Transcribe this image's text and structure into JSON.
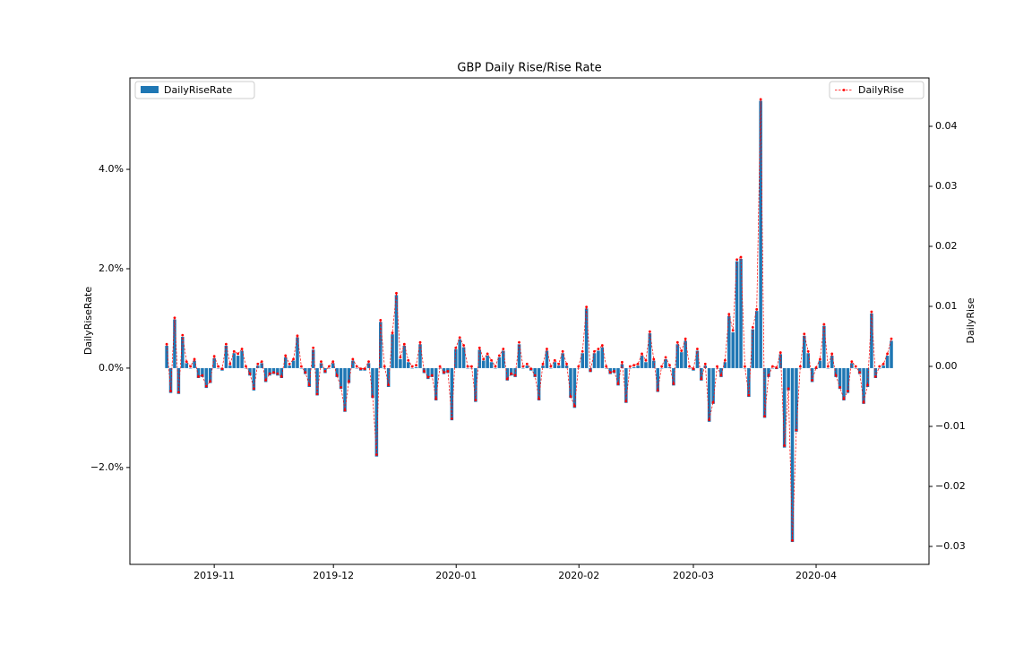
{
  "chart_data": {
    "type": "bar",
    "title": "GBP Daily Rise/Rise Rate",
    "y_label": "DailyRiseRate",
    "y2_label": "DailyRise",
    "xlim": [
      -9.3,
      192.5
    ],
    "xticks": [
      {
        "value": 12.0,
        "label": "2019-11"
      },
      {
        "value": 42.1,
        "label": "2019-12"
      },
      {
        "value": 73.1,
        "label": "2020-01"
      },
      {
        "value": 104.1,
        "label": "2020-02"
      },
      {
        "value": 133.0,
        "label": "2020-03"
      },
      {
        "value": 164.0,
        "label": "2020-04"
      }
    ],
    "ylim": [
      -3.95,
      5.84
    ],
    "yticks": [
      {
        "value": -2,
        "label": "−2.0%"
      },
      {
        "value": 0,
        "label": "0.0%"
      },
      {
        "value": 2,
        "label": "2.0%"
      },
      {
        "value": 4,
        "label": "4.0%"
      }
    ],
    "y2lim": [
      -0.03299,
      0.04806
    ],
    "y2ticks": [
      {
        "value": -0.03,
        "label": "−0.03"
      },
      {
        "value": -0.02,
        "label": "−0.02"
      },
      {
        "value": -0.01,
        "label": "−0.01"
      },
      {
        "value": 0,
        "label": "0.00"
      },
      0.01,
      0.02,
      0.03,
      0.04
    ],
    "series": [
      {
        "name": "DailyRiseRate",
        "type": "bar",
        "color": "#1f77b4",
        "legend": "upper left",
        "values": [
          0.45,
          -0.5,
          0.98,
          -0.52,
          0.63,
          0.1,
          0.0,
          0.15,
          -0.2,
          -0.18,
          -0.4,
          -0.3,
          0.2,
          0.0,
          -0.05,
          0.45,
          0.05,
          0.3,
          0.25,
          0.35,
          0.0,
          -0.15,
          -0.45,
          0.05,
          0.1,
          -0.28,
          -0.15,
          -0.12,
          -0.15,
          -0.2,
          0.22,
          0.05,
          0.15,
          0.62,
          0.0,
          -0.12,
          -0.38,
          0.37,
          -0.55,
          0.1,
          -0.1,
          0.0,
          0.1,
          -0.18,
          -0.42,
          -0.88,
          -0.3,
          0.15,
          0.0,
          -0.05,
          -0.05,
          0.1,
          -0.6,
          -1.78,
          0.93,
          0.0,
          -0.38,
          0.68,
          1.47,
          0.18,
          0.45,
          0.12,
          0.0,
          0.02,
          0.48,
          -0.1,
          -0.22,
          -0.18,
          -0.65,
          0.0,
          -0.12,
          -0.1,
          -1.05,
          0.38,
          0.58,
          0.42,
          0.0,
          0.0,
          -0.68,
          0.37,
          0.15,
          0.25,
          0.12,
          0.0,
          0.22,
          0.35,
          -0.25,
          -0.15,
          -0.18,
          0.48,
          0.0,
          0.05,
          -0.05,
          -0.18,
          -0.65,
          0.05,
          0.35,
          0.0,
          0.12,
          0.05,
          0.3,
          0.05,
          -0.6,
          -0.8,
          0.0,
          0.3,
          1.2,
          -0.08,
          0.3,
          0.35,
          0.42,
          0.0,
          -0.12,
          -0.1,
          -0.35,
          0.08,
          -0.7,
          0.0,
          0.02,
          0.05,
          0.25,
          0.12,
          0.7,
          0.15,
          -0.48,
          0.0,
          0.18,
          0.02,
          -0.35,
          0.48,
          0.32,
          0.55,
          0.0,
          -0.05,
          0.35,
          -0.25,
          0.05,
          -1.08,
          -0.72,
          0.0,
          -0.18,
          0.12,
          1.05,
          0.72,
          2.15,
          2.2,
          0.0,
          -0.58,
          0.78,
          1.15,
          5.38,
          -1.0,
          -0.18,
          0.0,
          -0.02,
          0.28,
          -1.6,
          -0.45,
          -3.5,
          -1.28,
          0.0,
          0.65,
          0.3,
          -0.28,
          -0.02,
          0.15,
          0.85,
          0.0,
          0.25,
          -0.18,
          -0.42,
          -0.65,
          -0.5,
          0.1,
          0.0,
          -0.12,
          -0.72,
          -0.38,
          1.1,
          -0.2,
          0.0,
          0.05,
          0.25,
          0.55
        ]
      },
      {
        "name": "DailyRise",
        "type": "line",
        "axis": "y2",
        "color": "red",
        "linestyle": "dashed",
        "legend": "upper right",
        "values": [
          0.0037,
          -0.0041,
          0.0081,
          -0.0043,
          0.0052,
          0.0008,
          0,
          0.0012,
          -0.0017,
          -0.0015,
          -0.0033,
          -0.0025,
          0.0017,
          0,
          -0.0004,
          0.0037,
          0.0004,
          0.0025,
          0.0021,
          0.0029,
          0,
          -0.0012,
          -0.0037,
          0.0004,
          0.0008,
          -0.0023,
          -0.0012,
          -0.001,
          -0.0012,
          -0.0017,
          0.0018,
          0.0004,
          0.0012,
          0.0051,
          0,
          -0.001,
          -0.0031,
          0.0031,
          -0.0046,
          0.0008,
          -0.0008,
          0,
          0.0008,
          -0.0015,
          -0.0035,
          -0.0073,
          -0.0025,
          0.0012,
          0,
          -0.0004,
          -0.0004,
          0.0008,
          -0.005,
          -0.0147,
          0.0077,
          0,
          -0.0031,
          0.0056,
          0.0122,
          0.0015,
          0.0037,
          0.001,
          0,
          0.0002,
          0.004,
          -0.0008,
          -0.0018,
          -0.0015,
          -0.0054,
          0,
          -0.001,
          -0.0008,
          -0.0087,
          0.0031,
          0.0048,
          0.0035,
          0,
          0,
          -0.0056,
          0.0031,
          0.0012,
          0.0021,
          0.001,
          0,
          0.0018,
          0.0029,
          -0.0021,
          -0.0012,
          -0.0015,
          0.004,
          0,
          0.0004,
          -0.0004,
          -0.0015,
          -0.0054,
          0.0004,
          0.0029,
          0,
          0.001,
          0.0004,
          0.0025,
          0.0004,
          -0.005,
          -0.0066,
          0,
          0.0025,
          0.0099,
          -0.0007,
          0.0025,
          0.0029,
          0.0035,
          0,
          -0.001,
          -0.0008,
          -0.0029,
          0.0007,
          -0.0058,
          0,
          0.0002,
          0.0004,
          0.0021,
          0.001,
          0.0058,
          0.0012,
          -0.004,
          0,
          0.0015,
          0.0002,
          -0.0029,
          0.004,
          0.0026,
          0.0046,
          0,
          -0.0004,
          0.0029,
          -0.0021,
          0.0004,
          -0.0089,
          -0.006,
          0,
          -0.0015,
          0.001,
          0.0087,
          0.006,
          0.0178,
          0.0182,
          0,
          -0.0048,
          0.0065,
          0.0095,
          0.0445,
          -0.0083,
          -0.0015,
          0,
          -0.0002,
          0.0023,
          -0.0132,
          -0.0037,
          -0.029,
          -0.0106,
          0,
          0.0054,
          0.0025,
          -0.0023,
          -0.0002,
          0.0012,
          0.007,
          0,
          0.0021,
          -0.0015,
          -0.0035,
          -0.0054,
          -0.0041,
          0.0008,
          0,
          -0.001,
          -0.006,
          -0.0031,
          0.0091,
          -0.0017,
          0,
          0.0004,
          0.0021,
          0.0046
        ]
      }
    ]
  }
}
